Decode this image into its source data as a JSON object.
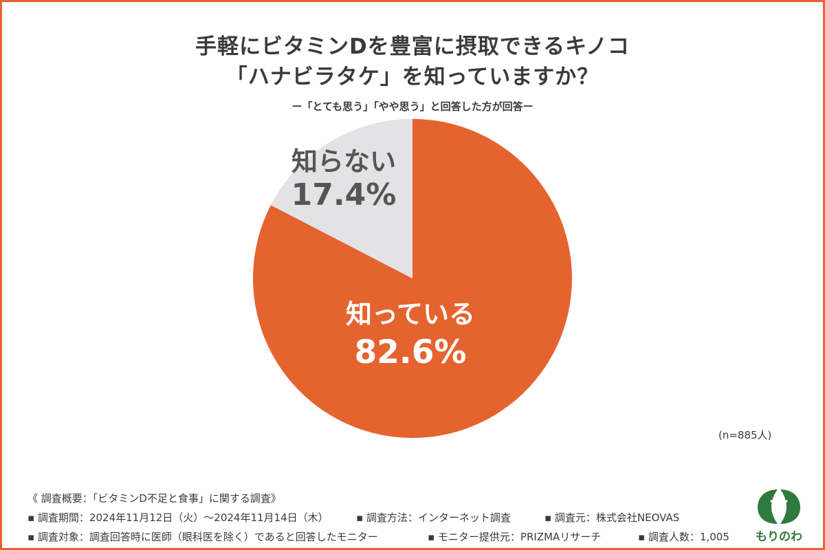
{
  "header": {
    "title_line1": "手軽にビタミンDを豊富に摂取できるキノコ",
    "title_line2": "「ハナビラタケ」を知っていますか？",
    "subtitle": "ー「とても思う」「やや思う」と回答した方が回答ー"
  },
  "colors": {
    "known": "#e5632f",
    "unknown": "#e3e3e6",
    "border": "#e5632f",
    "logo": "#2f7a3e"
  },
  "chart_data": {
    "type": "pie",
    "slices": [
      {
        "label": "知っている",
        "value": 82.6,
        "value_label": "82.6%",
        "color": "#e5632f"
      },
      {
        "label": "知らない",
        "value": 17.4,
        "value_label": "17.4%",
        "color": "#e3e3e6"
      }
    ],
    "start": "12 o'clock",
    "direction": "clockwise",
    "sample_note": "(n=885人)"
  },
  "footer": {
    "overview": "《 調査概要：「ビタミンD不足と食事」に関する調査》",
    "period": "▪ 調査期間：2024年11月12日（火）～2024年11月14日（木）",
    "method": "▪ 調査方法：インターネット調査",
    "source": "▪ 調査元：株式会社NEOVAS",
    "target": "▪ 調査対象：調査回答時に医師（眼科医を除く）であると回答したモニター",
    "provider": "▪ モニター提供元：PRIZMAリサーチ",
    "count": "▪ 調査人数：1,005"
  },
  "logo": {
    "text": "もりのわ",
    "icon": "leaf-logo-icon"
  }
}
